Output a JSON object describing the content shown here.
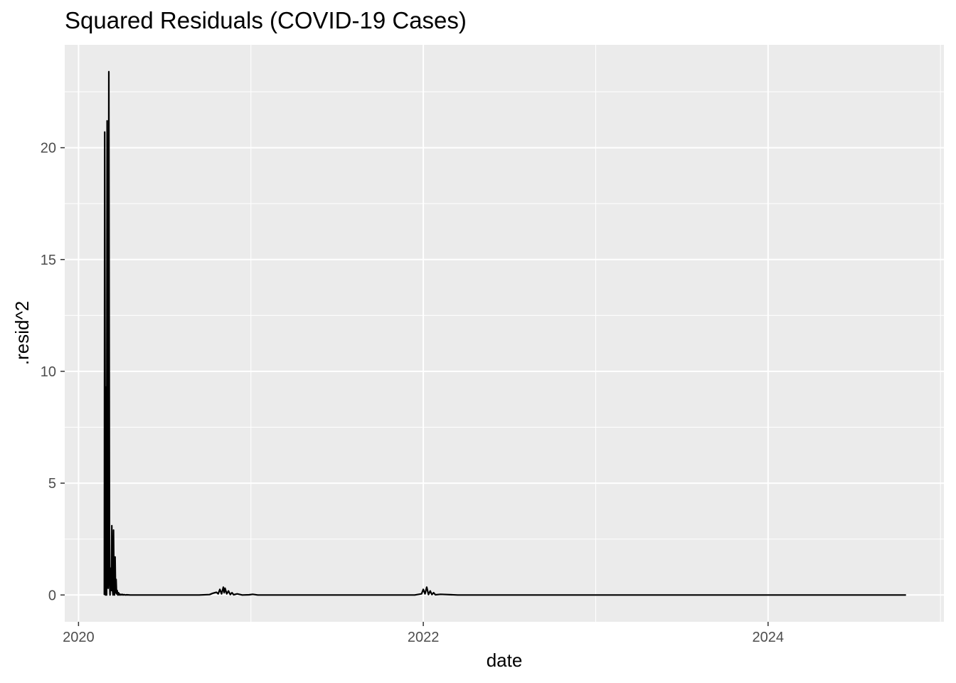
{
  "chart_data": {
    "type": "line",
    "title": "Squared Residuals (COVID-19 Cases)",
    "xlabel": "date",
    "ylabel": ".resid^2",
    "x_ticks": [
      "2020",
      "2022",
      "2024"
    ],
    "y_ticks": [
      "0",
      "5",
      "10",
      "15",
      "20"
    ],
    "xlim": [
      2019.92,
      2025.02
    ],
    "ylim": [
      -1.2,
      24.6
    ],
    "grid": true,
    "legend": "none",
    "series": [
      {
        "color": "#000000",
        "x": [
          2020.15,
          2020.152,
          2020.156,
          2020.16,
          2020.163,
          2020.166,
          2020.169,
          2020.172,
          2020.176,
          2020.18,
          2020.183,
          2020.186,
          2020.19,
          2020.193,
          2020.196,
          2020.2,
          2020.203,
          2020.206,
          2020.209,
          2020.212,
          2020.215,
          2020.218,
          2020.221,
          2020.224,
          2020.228,
          2020.232,
          2020.236,
          2020.24,
          2020.246,
          2020.252,
          2020.258,
          2020.264,
          2020.27,
          2020.28,
          2020.3,
          2020.35,
          2020.5,
          2020.7,
          2020.76,
          2020.78,
          2020.8,
          2020.81,
          2020.82,
          2020.83,
          2020.84,
          2020.845,
          2020.85,
          2020.86,
          2020.87,
          2020.88,
          2020.89,
          2020.9,
          2020.92,
          2020.95,
          2020.99,
          2021.01,
          2021.04,
          2021.5,
          2021.95,
          2021.99,
          2022.0,
          2022.01,
          2022.02,
          2022.03,
          2022.04,
          2022.05,
          2022.06,
          2022.07,
          2022.1,
          2022.2,
          2022.5,
          2023.0,
          2024.0,
          2024.8
        ],
        "y": [
          0.0,
          20.7,
          0.0,
          9.3,
          0.0,
          21.2,
          1.6,
          0.3,
          23.4,
          0.8,
          0.0,
          1.2,
          0.2,
          3.1,
          0.3,
          0.0,
          2.9,
          0.4,
          0.0,
          1.7,
          0.1,
          0.7,
          0.05,
          0.2,
          0.0,
          0.1,
          0.0,
          0.04,
          0.0,
          0.03,
          0.0,
          0.02,
          0.0,
          0.01,
          0.0,
          0.0,
          0.0,
          0.0,
          0.02,
          0.08,
          0.12,
          0.05,
          0.25,
          0.05,
          0.35,
          0.1,
          0.3,
          0.05,
          0.18,
          0.02,
          0.1,
          0.01,
          0.05,
          0.0,
          0.01,
          0.03,
          0.0,
          0.0,
          0.0,
          0.05,
          0.25,
          0.05,
          0.35,
          0.02,
          0.18,
          0.02,
          0.1,
          0.01,
          0.03,
          0.0,
          0.0,
          0.0,
          0.0,
          0.0
        ]
      }
    ]
  }
}
